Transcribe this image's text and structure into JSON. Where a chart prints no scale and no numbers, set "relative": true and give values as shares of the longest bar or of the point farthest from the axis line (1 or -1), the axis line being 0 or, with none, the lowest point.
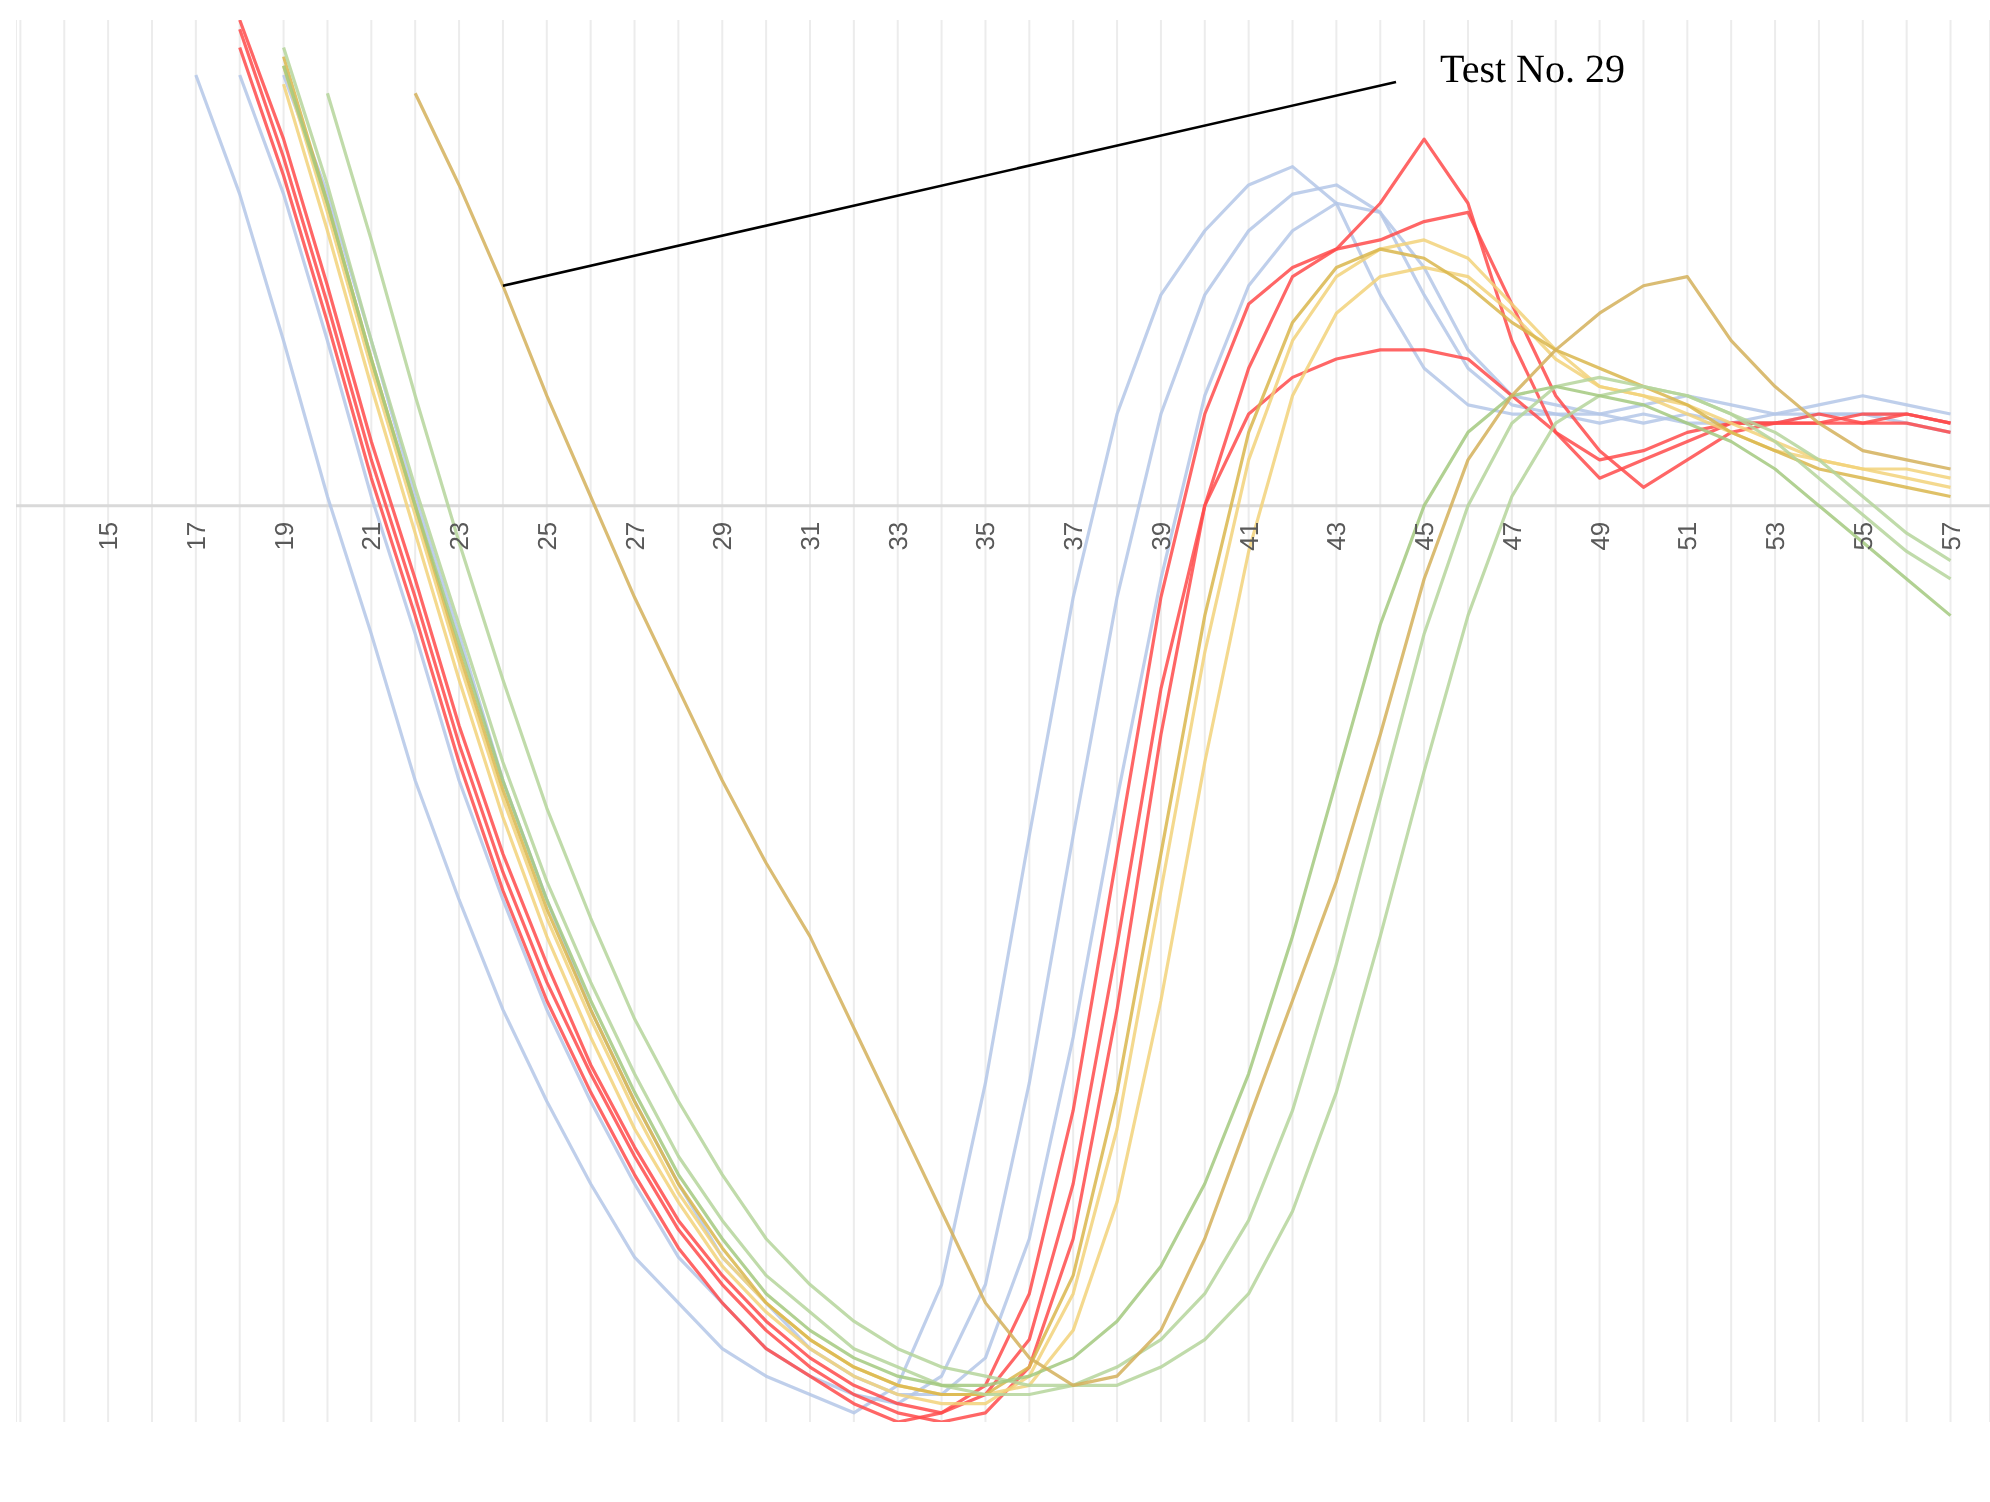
{
  "chart_data": {
    "type": "line",
    "relative": true,
    "grid": "x",
    "marker": "none",
    "line_style": "solid",
    "xlim": [
      12.9,
      57.9
    ],
    "xticks": [
      {
        "value": 13,
        "label": null
      },
      {
        "value": 14,
        "label": null
      },
      15,
      {
        "value": 16,
        "label": null
      },
      17,
      {
        "value": 18,
        "label": null
      },
      19,
      {
        "value": 20,
        "label": null
      },
      21,
      {
        "value": 22,
        "label": null
      },
      23,
      {
        "value": 24,
        "label": null
      },
      25,
      {
        "value": 26,
        "label": null
      },
      27,
      {
        "value": 28,
        "label": null
      },
      29,
      {
        "value": 30,
        "label": null
      },
      31,
      {
        "value": 32,
        "label": null
      },
      33,
      {
        "value": 34,
        "label": null
      },
      35,
      {
        "value": 36,
        "label": null
      },
      37,
      {
        "value": 38,
        "label": null
      },
      39,
      {
        "value": 40,
        "label": null
      },
      41,
      {
        "value": 42,
        "label": null
      },
      43,
      {
        "value": 44,
        "label": null
      },
      45,
      {
        "value": 46,
        "label": null
      },
      47,
      {
        "value": 48,
        "label": null
      },
      49,
      {
        "value": 50,
        "label": null
      },
      51,
      {
        "value": 52,
        "label": null
      },
      53,
      {
        "value": 54,
        "label": null
      },
      55,
      {
        "value": 56,
        "label": null
      },
      57
    ],
    "x": [
      17,
      18,
      19,
      20,
      21,
      22,
      23,
      24,
      25,
      26,
      27,
      28,
      29,
      30,
      31,
      32,
      33,
      34,
      35,
      36,
      37,
      38,
      39,
      40,
      41,
      42,
      43,
      44,
      45,
      46,
      47,
      48,
      49,
      50,
      51,
      52,
      53,
      54,
      55,
      56,
      57
    ],
    "annotations": [
      {
        "text": "Test No. 29",
        "x": 24,
        "y": 0.24
      }
    ],
    "series": [
      {
        "color": "#b4c7e7",
        "values": [
          null,
          0.47,
          0.34,
          0.18,
          0.01,
          -0.14,
          -0.3,
          -0.43,
          -0.55,
          -0.65,
          -0.74,
          -0.82,
          -0.87,
          -0.92,
          -0.95,
          -0.97,
          -0.98,
          -0.95,
          -0.85,
          -0.63,
          -0.36,
          -0.1,
          0.1,
          0.23,
          0.3,
          0.34,
          0.35,
          0.32,
          0.23,
          0.15,
          0.11,
          0.1,
          0.1,
          0.09,
          0.1,
          0.09,
          0.09,
          0.1,
          0.1,
          0.1,
          0.09
        ]
      },
      {
        "color": "#b4c7e7",
        "values": [
          0.47,
          0.34,
          0.18,
          0.01,
          -0.14,
          -0.3,
          -0.43,
          -0.55,
          -0.65,
          -0.74,
          -0.82,
          -0.87,
          -0.92,
          -0.95,
          -0.97,
          -0.99,
          -0.96,
          -0.85,
          -0.63,
          -0.36,
          -0.1,
          0.1,
          0.23,
          0.3,
          0.35,
          0.37,
          0.33,
          0.23,
          0.15,
          0.11,
          0.1,
          0.1,
          0.09,
          0.1,
          0.09,
          0.09,
          0.1,
          0.1,
          0.1,
          0.09,
          0.08
        ]
      },
      {
        "color": "#b4c7e7",
        "values": [
          null,
          null,
          0.47,
          0.34,
          0.18,
          0.01,
          -0.14,
          -0.3,
          -0.43,
          -0.55,
          -0.65,
          -0.74,
          -0.82,
          -0.87,
          -0.92,
          -0.95,
          -0.97,
          -0.97,
          -0.93,
          -0.8,
          -0.58,
          -0.32,
          -0.08,
          0.12,
          0.24,
          0.3,
          0.33,
          0.32,
          0.26,
          0.17,
          0.12,
          0.11,
          0.1,
          0.11,
          0.12,
          0.11,
          0.1,
          0.11,
          0.12,
          0.11,
          0.1
        ]
      },
      {
        "color": "#ff4b4b",
        "values": [
          null,
          0.52,
          0.38,
          0.22,
          0.05,
          -0.1,
          -0.26,
          -0.4,
          -0.52,
          -0.62,
          -0.71,
          -0.79,
          -0.85,
          -0.9,
          -0.94,
          -0.97,
          -0.99,
          -1.0,
          -0.99,
          -0.94,
          -0.8,
          -0.55,
          -0.25,
          0.0,
          0.15,
          0.25,
          0.28,
          0.29,
          0.31,
          0.32,
          0.22,
          0.12,
          0.06,
          0.02,
          0.05,
          0.08,
          0.09,
          0.09,
          0.09,
          0.1,
          0.09
        ]
      },
      {
        "color": "#ff4b4b",
        "values": [
          null,
          0.5,
          0.36,
          0.2,
          0.03,
          -0.12,
          -0.28,
          -0.42,
          -0.54,
          -0.64,
          -0.73,
          -0.81,
          -0.87,
          -0.92,
          -0.95,
          -0.98,
          -1.0,
          -0.99,
          -0.96,
          -0.86,
          -0.66,
          -0.38,
          -0.1,
          0.1,
          0.22,
          0.26,
          0.28,
          0.33,
          0.4,
          0.33,
          0.18,
          0.08,
          0.03,
          0.05,
          0.07,
          0.09,
          0.09,
          0.1,
          0.09,
          0.09,
          0.08
        ]
      },
      {
        "color": "#ff4b4b",
        "values": [
          null,
          0.53,
          0.4,
          0.24,
          0.07,
          -0.08,
          -0.24,
          -0.38,
          -0.5,
          -0.61,
          -0.7,
          -0.78,
          -0.84,
          -0.89,
          -0.93,
          -0.96,
          -0.98,
          -0.99,
          -0.97,
          -0.91,
          -0.74,
          -0.48,
          -0.2,
          0.0,
          0.1,
          0.14,
          0.16,
          0.17,
          0.17,
          0.16,
          0.12,
          0.08,
          0.05,
          0.06,
          0.08,
          0.09,
          0.09,
          0.09,
          0.1,
          0.1,
          0.09
        ]
      },
      {
        "color": "#f2d27a",
        "values": [
          null,
          null,
          0.46,
          0.3,
          0.13,
          -0.03,
          -0.19,
          -0.34,
          -0.47,
          -0.58,
          -0.68,
          -0.76,
          -0.83,
          -0.88,
          -0.92,
          -0.95,
          -0.97,
          -0.98,
          -0.98,
          -0.95,
          -0.86,
          -0.68,
          -0.42,
          -0.16,
          0.05,
          0.18,
          0.25,
          0.28,
          0.29,
          0.27,
          0.22,
          0.17,
          0.13,
          0.12,
          0.11,
          0.09,
          0.07,
          0.05,
          0.04,
          0.04,
          0.03
        ]
      },
      {
        "color": "#f2d27a",
        "values": [
          null,
          null,
          0.48,
          0.32,
          0.15,
          -0.01,
          -0.17,
          -0.32,
          -0.45,
          -0.56,
          -0.66,
          -0.75,
          -0.82,
          -0.87,
          -0.91,
          -0.94,
          -0.96,
          -0.97,
          -0.97,
          -0.96,
          -0.9,
          -0.76,
          -0.54,
          -0.28,
          -0.05,
          0.12,
          0.21,
          0.25,
          0.26,
          0.25,
          0.21,
          0.16,
          0.13,
          0.12,
          0.1,
          0.08,
          0.06,
          0.05,
          0.04,
          0.03,
          0.02
        ]
      },
      {
        "color": "#d9b64c",
        "values": [
          null,
          null,
          0.49,
          0.33,
          0.16,
          0.0,
          -0.16,
          -0.31,
          -0.44,
          -0.55,
          -0.65,
          -0.74,
          -0.81,
          -0.87,
          -0.91,
          -0.94,
          -0.96,
          -0.97,
          -0.97,
          -0.94,
          -0.84,
          -0.64,
          -0.38,
          -0.12,
          0.08,
          0.2,
          0.26,
          0.28,
          0.27,
          0.24,
          0.2,
          0.17,
          0.15,
          0.13,
          0.11,
          0.08,
          0.06,
          0.04,
          0.03,
          0.02,
          0.01
        ]
      },
      {
        "color": "#b5d59b",
        "values": [
          null,
          null,
          0.5,
          0.35,
          0.18,
          0.02,
          -0.13,
          -0.28,
          -0.41,
          -0.52,
          -0.62,
          -0.71,
          -0.78,
          -0.84,
          -0.88,
          -0.92,
          -0.94,
          -0.96,
          -0.97,
          -0.97,
          -0.96,
          -0.94,
          -0.91,
          -0.86,
          -0.78,
          -0.66,
          -0.5,
          -0.32,
          -0.14,
          0.0,
          0.09,
          0.13,
          0.14,
          0.13,
          0.12,
          0.1,
          0.07,
          0.03,
          -0.01,
          -0.05,
          -0.08
        ]
      },
      {
        "color": "#b5d59b",
        "values": [
          null,
          null,
          null,
          0.45,
          0.29,
          0.12,
          -0.04,
          -0.19,
          -0.33,
          -0.45,
          -0.56,
          -0.65,
          -0.73,
          -0.8,
          -0.85,
          -0.89,
          -0.92,
          -0.94,
          -0.95,
          -0.96,
          -0.96,
          -0.96,
          -0.94,
          -0.91,
          -0.86,
          -0.77,
          -0.64,
          -0.47,
          -0.29,
          -0.12,
          0.01,
          0.09,
          0.12,
          0.13,
          0.12,
          0.1,
          0.08,
          0.05,
          0.01,
          -0.03,
          -0.06
        ]
      },
      {
        "color": "#a3c97f",
        "values": [
          null,
          null,
          0.48,
          0.33,
          0.16,
          0.0,
          -0.15,
          -0.3,
          -0.43,
          -0.54,
          -0.64,
          -0.73,
          -0.8,
          -0.86,
          -0.9,
          -0.93,
          -0.95,
          -0.96,
          -0.96,
          -0.95,
          -0.93,
          -0.89,
          -0.83,
          -0.74,
          -0.62,
          -0.47,
          -0.3,
          -0.13,
          0.0,
          0.08,
          0.12,
          0.13,
          0.12,
          0.11,
          0.09,
          0.07,
          0.04,
          0.0,
          -0.04,
          -0.08,
          -0.12
        ]
      },
      {
        "color": "#d4b05a",
        "values": [
          null,
          null,
          null,
          null,
          null,
          0.45,
          0.35,
          0.24,
          0.12,
          0.01,
          -0.1,
          -0.2,
          -0.3,
          -0.39,
          -0.47,
          -0.57,
          -0.67,
          -0.77,
          -0.87,
          -0.93,
          -0.96,
          -0.95,
          -0.9,
          -0.8,
          -0.67,
          -0.54,
          -0.41,
          -0.25,
          -0.08,
          0.05,
          0.12,
          0.17,
          0.21,
          0.24,
          0.25,
          0.18,
          0.13,
          0.09,
          0.06,
          0.05,
          0.04
        ]
      }
    ]
  }
}
